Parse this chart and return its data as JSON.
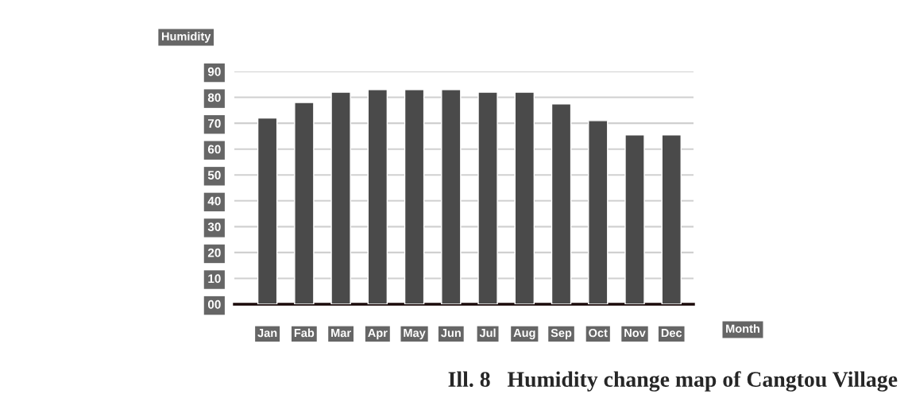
{
  "chart_data": {
    "type": "bar",
    "title": "Ill. 8   Humidity change map of Cangtou Village",
    "xlabel": "Month",
    "ylabel": "Humidity",
    "categories": [
      "Jan",
      "Fab",
      "Mar",
      "Apr",
      "May",
      "Jun",
      "Jul",
      "Aug",
      "Sep",
      "Oct",
      "Nov",
      "Dec"
    ],
    "values": [
      72,
      78,
      82,
      83,
      83,
      83,
      82,
      82,
      77.5,
      71,
      65.5,
      65.5
    ],
    "color": "#4a4a4a",
    "ylim": [
      0,
      90
    ],
    "yticks": [
      {
        "value": 0,
        "label": "00"
      },
      10,
      20,
      30,
      40,
      50,
      60,
      70,
      80,
      90
    ],
    "grid": "y"
  }
}
